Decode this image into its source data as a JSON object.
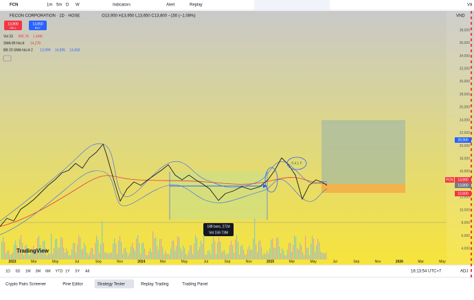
{
  "toolbar": {
    "symbol": "FCN",
    "intervals": [
      "1m",
      "5m",
      "D",
      "W"
    ],
    "indicators": "Indicators",
    "alert": "Alert",
    "replay": "Replay",
    "side_text": "Vă"
  },
  "legend": {
    "name": "FECON CORPORATION · 1D · HOSE",
    "ohlc": "O13,950 H13,950 L13,650 C13,800 −150 (−1.08%)",
    "sell_price": "13,800",
    "sell": "SELL",
    "buy_price": "13,850",
    "buy": "BUY",
    "studies": [
      {
        "name": "Vol 33",
        "values": [
          "995.7K",
          "1.44M"
        ]
      },
      {
        "name": "SMA 89 hlcc4",
        "values": [
          "14,278"
        ]
      },
      {
        "name": "BB 20 SMA hlcc4 2",
        "values": [
          "13,999",
          "14,595",
          "13,403"
        ]
      }
    ]
  },
  "price_axis": {
    "currency": "VND",
    "ticks": [
      "38,000",
      "36,000",
      "34,000",
      "32,000",
      "30,000",
      "28,000",
      "26,000",
      "24,000",
      "22,000",
      "20,000",
      "18,000",
      "16,000",
      "14,000",
      "12,000",
      "10,000",
      "8,000",
      "6,000",
      "4,000"
    ],
    "tags": [
      {
        "text": "20,900",
        "prefix": ""
      },
      {
        "text": "13,800",
        "prefix": "FCN"
      },
      {
        "text": "13,800",
        "prefix": ""
      },
      {
        "text": "12,600",
        "prefix": ""
      }
    ]
  },
  "time_axis": [
    "2023",
    "Mar",
    "May",
    "Jul",
    "Sep",
    "Nov",
    "2024",
    "Mar",
    "May",
    "Jul",
    "Sep",
    "Nov",
    "2025",
    "Mar",
    "May",
    "Jul",
    "Sep",
    "Nov",
    "2026",
    "Mar",
    "May"
  ],
  "drawings": {
    "range_bars": "188 bars, 272d",
    "range_vol": "Vol 159.73M",
    "note": "9.4.1 F"
  },
  "logo": "TradingView",
  "bottom_bar": {
    "ranges": [
      "1D",
      "5D",
      "1M",
      "3M",
      "6M",
      "YTD",
      "1Y",
      "5Y",
      "All"
    ],
    "clock": "16:13:54 UTC+7",
    "adj": "ADJ"
  },
  "tabs": [
    "Crypto Pairs Screener",
    "Pine Editor",
    "Strategy Tester",
    "Replay Trading",
    "Trading Panel"
  ]
}
